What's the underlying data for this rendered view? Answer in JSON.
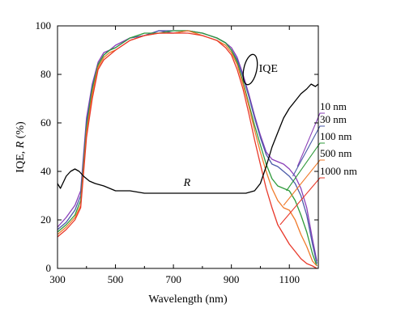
{
  "chart_data": {
    "type": "line",
    "title": "",
    "xlabel": "Wavelength (nm)",
    "ylabel_parts": [
      "IQE, ",
      "R",
      " (%)"
    ],
    "xlim": [
      300,
      1200
    ],
    "ylim": [
      0,
      100
    ],
    "xticks": [
      300,
      500,
      700,
      900,
      1100
    ],
    "yticks": [
      0,
      20,
      40,
      60,
      80,
      100
    ],
    "grid": false,
    "annotations": {
      "iqe": "IQE",
      "r": "R"
    },
    "series": [
      {
        "name": "10 nm",
        "color": "#8a3fb8",
        "x": [
          300,
          330,
          360,
          380,
          400,
          420,
          440,
          460,
          480,
          500,
          550,
          600,
          650,
          700,
          750,
          800,
          850,
          880,
          900,
          920,
          940,
          960,
          980,
          1000,
          1020,
          1040,
          1060,
          1080,
          1100,
          1120,
          1140,
          1160,
          1180,
          1195
        ],
        "y": [
          17,
          21,
          26,
          32,
          62,
          76,
          85,
          89,
          90,
          92,
          95,
          96,
          98,
          97,
          98,
          97,
          95,
          93,
          91,
          87,
          80,
          72,
          63,
          55,
          48,
          45,
          44,
          43,
          41,
          38,
          33,
          25,
          12,
          3
        ]
      },
      {
        "name": "30 nm",
        "color": "#4a5aa8",
        "x": [
          300,
          330,
          360,
          380,
          400,
          420,
          440,
          460,
          480,
          500,
          550,
          600,
          650,
          700,
          750,
          800,
          850,
          880,
          900,
          920,
          940,
          960,
          980,
          1000,
          1020,
          1040,
          1060,
          1080,
          1100,
          1120,
          1140,
          1160,
          1180,
          1195
        ],
        "y": [
          16,
          19,
          24,
          30,
          60,
          75,
          84,
          88,
          90,
          91,
          95,
          96,
          98,
          98,
          98,
          97,
          95,
          93,
          90,
          86,
          79,
          71,
          62,
          54,
          47,
          43,
          42,
          40,
          38,
          35,
          30,
          22,
          10,
          2
        ]
      },
      {
        "name": "100 nm",
        "color": "#2e9a3a",
        "x": [
          300,
          330,
          360,
          380,
          400,
          420,
          440,
          460,
          480,
          500,
          550,
          600,
          650,
          700,
          750,
          800,
          850,
          880,
          900,
          920,
          940,
          960,
          980,
          1000,
          1020,
          1040,
          1060,
          1080,
          1100,
          1120,
          1140,
          1160,
          1180,
          1195
        ],
        "y": [
          15,
          18,
          22,
          28,
          58,
          74,
          84,
          88,
          90,
          91,
          95,
          97,
          97,
          98,
          98,
          97,
          95,
          93,
          90,
          85,
          77,
          68,
          59,
          51,
          43,
          37,
          34,
          33,
          32,
          28,
          22,
          15,
          6,
          1
        ]
      },
      {
        "name": "500 nm",
        "color": "#f07a2a",
        "x": [
          300,
          330,
          360,
          380,
          400,
          420,
          440,
          460,
          480,
          500,
          550,
          600,
          650,
          700,
          750,
          800,
          850,
          880,
          900,
          920,
          940,
          960,
          980,
          1000,
          1020,
          1040,
          1060,
          1080,
          1100,
          1120,
          1140,
          1160,
          1180,
          1195
        ],
        "y": [
          14,
          17,
          21,
          26,
          56,
          72,
          83,
          87,
          89,
          90,
          94,
          96,
          97,
          97,
          98,
          96,
          94,
          92,
          89,
          84,
          76,
          67,
          57,
          48,
          40,
          33,
          28,
          25,
          24,
          20,
          14,
          9,
          3,
          1
        ]
      },
      {
        "name": "1000 nm",
        "color": "#e8382a",
        "x": [
          300,
          330,
          360,
          380,
          400,
          420,
          440,
          460,
          480,
          500,
          550,
          600,
          650,
          700,
          750,
          800,
          850,
          880,
          900,
          920,
          940,
          960,
          980,
          1000,
          1020,
          1040,
          1060,
          1080,
          1100,
          1120,
          1140,
          1160,
          1180,
          1195
        ],
        "y": [
          13,
          16,
          20,
          25,
          54,
          70,
          82,
          86,
          88,
          90,
          94,
          96,
          97,
          97,
          97,
          96,
          94,
          91,
          88,
          82,
          74,
          64,
          53,
          43,
          33,
          25,
          18,
          14,
          10,
          7,
          4,
          2,
          1,
          0
        ]
      },
      {
        "name": "R",
        "color": "#000000",
        "x": [
          300,
          310,
          330,
          345,
          360,
          375,
          390,
          410,
          430,
          460,
          500,
          550,
          600,
          650,
          700,
          750,
          800,
          850,
          900,
          950,
          980,
          1000,
          1020,
          1040,
          1060,
          1080,
          1100,
          1120,
          1140,
          1160,
          1175,
          1190,
          1200
        ],
        "y": [
          35,
          33,
          38,
          40,
          41,
          40,
          38,
          36,
          35,
          34,
          32,
          32,
          31,
          31,
          31,
          31,
          31,
          31,
          31,
          31,
          32,
          35,
          42,
          50,
          56,
          62,
          66,
          69,
          72,
          74,
          76,
          75,
          76
        ]
      }
    ],
    "legend": [
      "10 nm",
      "30 nm",
      "100 nm",
      "500 nm",
      "1000 nm"
    ]
  }
}
